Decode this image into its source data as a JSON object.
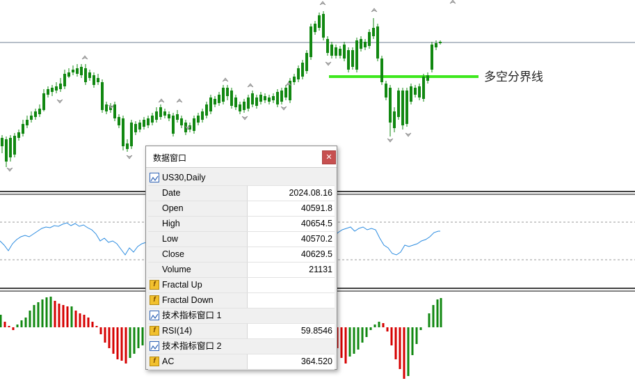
{
  "colors": {
    "bull": "#d60000",
    "bear": "#118811",
    "support": "#3ee81e",
    "rsi": "#2a8be0",
    "grid": "#6f7f93"
  },
  "annotation": {
    "text": "多空分界线"
  },
  "data_window": {
    "title": "数据窗口",
    "close_icon": "close-icon",
    "symbol": "US30,Daily",
    "rows": [
      {
        "label": "Date",
        "value": "2024.08.16"
      },
      {
        "label": "Open",
        "value": "40591.8"
      },
      {
        "label": "High",
        "value": "40654.5"
      },
      {
        "label": "Low",
        "value": "40570.2"
      },
      {
        "label": "Close",
        "value": "40629.5"
      },
      {
        "label": "Volume",
        "value": "21131"
      }
    ],
    "fractal_up": "Fractal Up",
    "fractal_down": "Fractal Down",
    "sub1_title": "技术指标窗口 1",
    "rsi": {
      "label": "RSI(14)",
      "value": "59.8546"
    },
    "sub2_title": "技术指标窗口 2",
    "ac": {
      "label": "AC",
      "value": "364.520"
    }
  }
}
